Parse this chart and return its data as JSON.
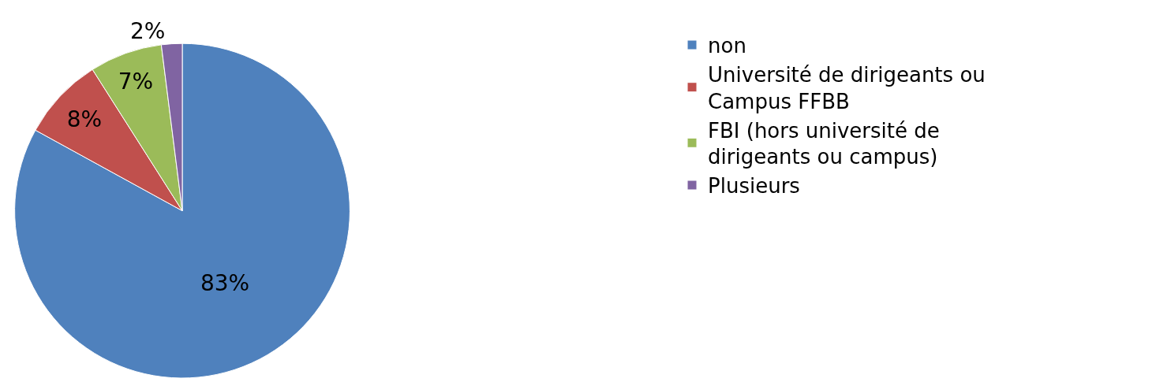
{
  "chart_data": {
    "type": "pie",
    "categories": [
      "non",
      "Université de dirigeants ou Campus FFBB",
      "FBI (hors université de dirigeants ou campus)",
      "Plusieurs"
    ],
    "values": [
      83,
      8,
      7,
      2
    ],
    "colors": [
      "#4f81bd",
      "#c0504d",
      "#9bbb59",
      "#8064a2"
    ],
    "value_labels": [
      "83%",
      "8%",
      "7%",
      "2%"
    ],
    "legend": "right"
  }
}
